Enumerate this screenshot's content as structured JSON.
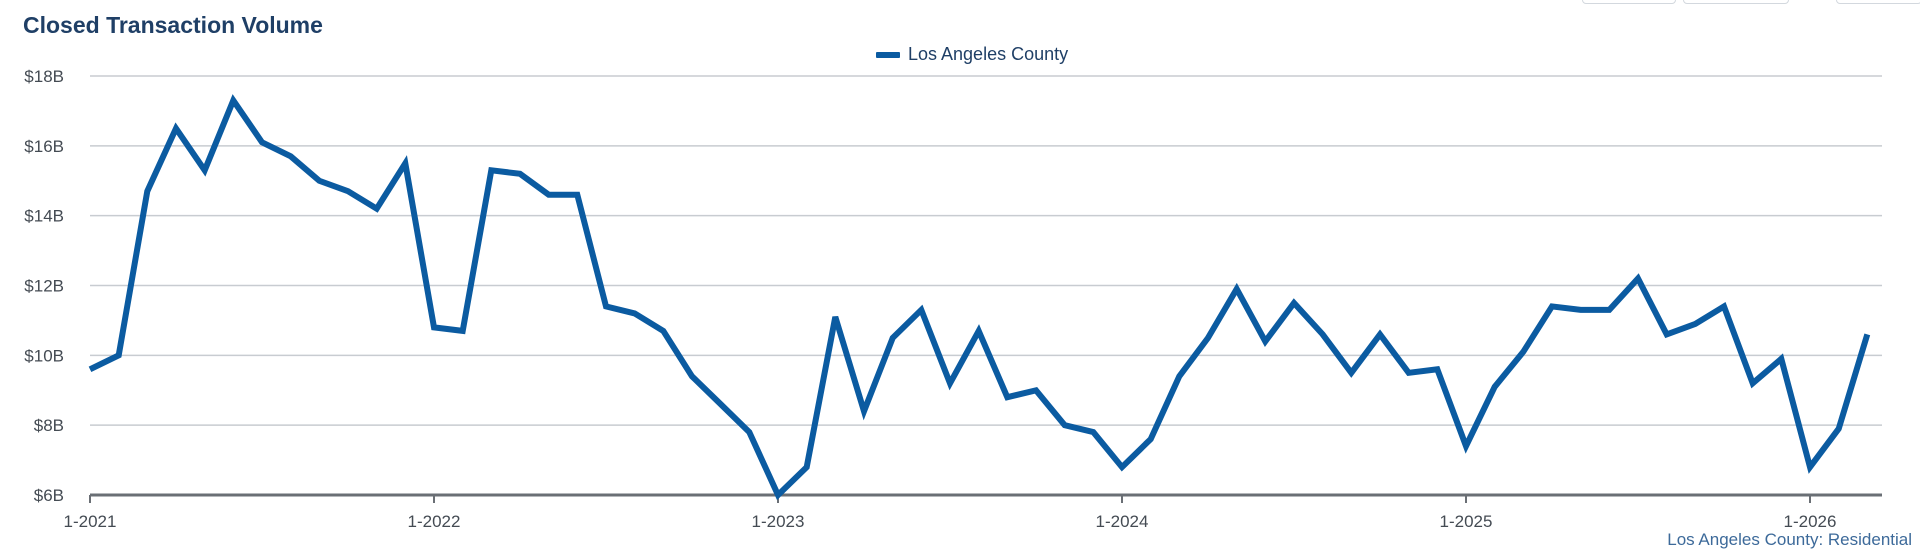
{
  "header": {
    "title": "Closed Transaction Volume"
  },
  "footer": {
    "credit": "Los Angeles County: Residential"
  },
  "colors": {
    "series": "#0b5ba1",
    "grid": "#c8ccd1",
    "axis": "#6a6f75",
    "title": "#1f3f66"
  },
  "chart_data": {
    "type": "line",
    "title": "Closed Transaction Volume",
    "xlabel": "",
    "ylabel": "",
    "ylim": [
      6,
      18
    ],
    "y_ticks": [
      "$6B",
      "$8B",
      "$10B",
      "$12B",
      "$14B",
      "$16B",
      "$18B"
    ],
    "x_ticks": [
      "1-2021",
      "1-2022",
      "1-2023",
      "1-2024",
      "1-2025",
      "1-2026"
    ],
    "grid": true,
    "legend_position": "top-center",
    "x_start": "2021-01",
    "x_end": "2026-03",
    "series": [
      {
        "name": "Los Angeles County",
        "unit": "$B",
        "values": [
          9.6,
          10.0,
          14.7,
          16.5,
          15.3,
          17.3,
          16.1,
          15.7,
          15.0,
          14.7,
          14.2,
          15.5,
          10.8,
          10.7,
          15.3,
          15.2,
          14.6,
          14.6,
          11.4,
          11.2,
          10.7,
          9.4,
          8.6,
          7.8,
          6.0,
          6.8,
          11.1,
          8.4,
          10.5,
          11.3,
          9.2,
          10.7,
          8.8,
          9.0,
          8.0,
          7.8,
          6.8,
          7.6,
          9.4,
          10.5,
          11.9,
          10.4,
          11.5,
          10.6,
          9.5,
          10.6,
          9.5,
          9.6,
          7.4,
          9.1,
          10.1,
          11.4,
          11.3,
          11.3,
          12.2,
          10.6,
          10.9,
          11.4,
          9.2,
          9.9,
          6.8,
          7.9,
          10.6
        ]
      }
    ]
  }
}
